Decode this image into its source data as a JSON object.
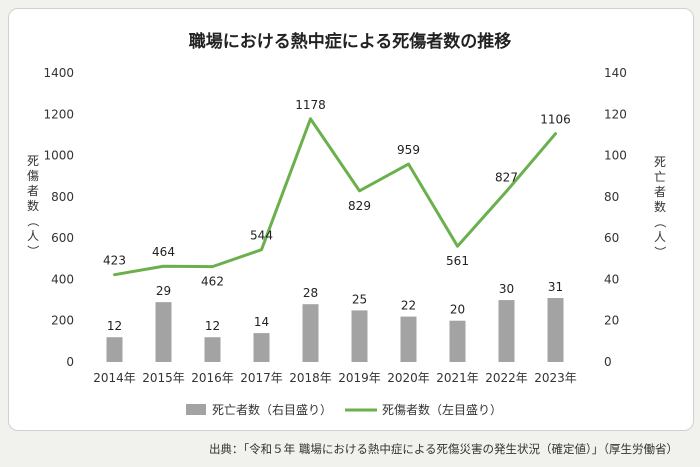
{
  "source_note": "出典：「令和５年 職場における熱中症による死傷災害の発生状況（確定値）」（厚生労働省）",
  "chart_data": {
    "type": "bar+line",
    "title": "職場における熱中症による死傷者数の推移",
    "categories": [
      "2014年",
      "2015年",
      "2016年",
      "2017年",
      "2018年",
      "2019年",
      "2020年",
      "2021年",
      "2022年",
      "2023年"
    ],
    "series": [
      {
        "name": "死亡者数（右目盛り）",
        "type": "bar",
        "axis": "right",
        "color": "#a3a3a3",
        "values": [
          12,
          29,
          12,
          14,
          28,
          25,
          22,
          20,
          30,
          31
        ]
      },
      {
        "name": "死傷者数（左目盛り）",
        "type": "line",
        "axis": "left",
        "color": "#6ab04c",
        "values": [
          423,
          464,
          462,
          544,
          1178,
          829,
          959,
          561,
          827,
          1106
        ]
      }
    ],
    "left_axis": {
      "label": "死傷者数（人）",
      "ylim": [
        0,
        1400
      ],
      "ticks": [
        0,
        200,
        400,
        600,
        800,
        1000,
        1200,
        1400
      ]
    },
    "right_axis": {
      "label": "死亡者数（人）",
      "ylim": [
        0,
        140
      ],
      "ticks": [
        0,
        20,
        40,
        60,
        80,
        100,
        120,
        140
      ]
    },
    "legend_position": "bottom",
    "grid": false
  }
}
